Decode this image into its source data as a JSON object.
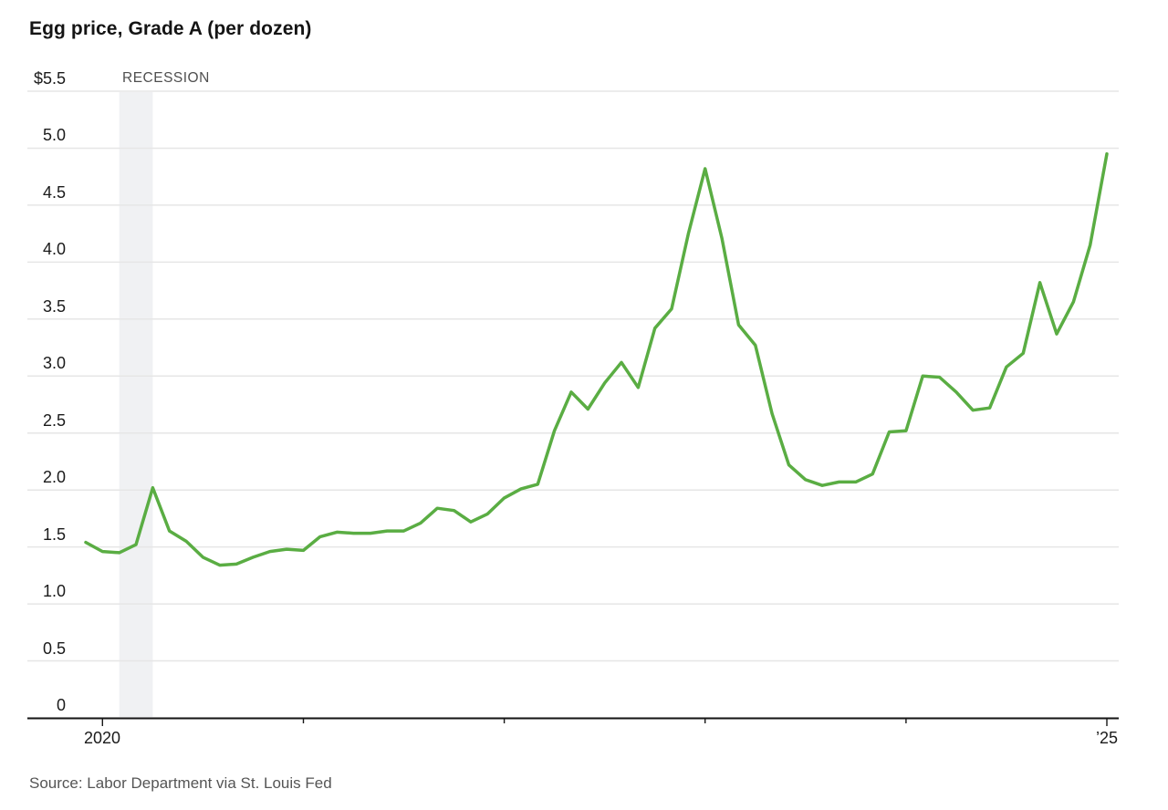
{
  "chart_data": {
    "type": "line",
    "title": "Egg price, Grade A (per dozen)",
    "source_note": "Source: Labor Department via St. Louis Fed",
    "xlabel": "",
    "ylabel": "",
    "ylim": [
      0,
      5.5
    ],
    "grid": "horizontal",
    "legend": "none",
    "recession_band": {
      "label": "RECESSION",
      "start": "2020-02",
      "end": "2020-04"
    },
    "colors": {
      "line": "#5aad43",
      "recession_band": "#f0f1f3",
      "gridline": "#e6e6e6",
      "axis": "#161616",
      "tick_label": "#1a1a1a",
      "muted_text": "#555555"
    },
    "y_ticks": [
      {
        "value": 5.5,
        "label": "$5.5"
      },
      {
        "value": 5.0,
        "label": "5.0"
      },
      {
        "value": 4.5,
        "label": "4.5"
      },
      {
        "value": 4.0,
        "label": "4.0"
      },
      {
        "value": 3.5,
        "label": "3.5"
      },
      {
        "value": 3.0,
        "label": "3.0"
      },
      {
        "value": 2.5,
        "label": "2.5"
      },
      {
        "value": 2.0,
        "label": "2.0"
      },
      {
        "value": 1.5,
        "label": "1.5"
      },
      {
        "value": 1.0,
        "label": "1.0"
      },
      {
        "value": 0.5,
        "label": "0.5"
      },
      {
        "value": 0,
        "label": "0"
      }
    ],
    "x_ticks": [
      {
        "month": "2020-01",
        "label": "2020"
      },
      {
        "month": "2021-01",
        "label": ""
      },
      {
        "month": "2022-01",
        "label": ""
      },
      {
        "month": "2023-01",
        "label": ""
      },
      {
        "month": "2024-01",
        "label": ""
      },
      {
        "month": "2025-01",
        "label": "’25"
      }
    ],
    "series": [
      {
        "name": "Egg price, Grade A (per dozen)",
        "color": "#5aad43",
        "x": [
          "2019-12",
          "2020-01",
          "2020-02",
          "2020-03",
          "2020-04",
          "2020-05",
          "2020-06",
          "2020-07",
          "2020-08",
          "2020-09",
          "2020-10",
          "2020-11",
          "2020-12",
          "2021-01",
          "2021-02",
          "2021-03",
          "2021-04",
          "2021-05",
          "2021-06",
          "2021-07",
          "2021-08",
          "2021-09",
          "2021-10",
          "2021-11",
          "2021-12",
          "2022-01",
          "2022-02",
          "2022-03",
          "2022-04",
          "2022-05",
          "2022-06",
          "2022-07",
          "2022-08",
          "2022-09",
          "2022-10",
          "2022-11",
          "2022-12",
          "2023-01",
          "2023-02",
          "2023-03",
          "2023-04",
          "2023-05",
          "2023-06",
          "2023-07",
          "2023-08",
          "2023-09",
          "2023-10",
          "2023-11",
          "2023-12",
          "2024-01",
          "2024-02",
          "2024-03",
          "2024-04",
          "2024-05",
          "2024-06",
          "2024-07",
          "2024-08",
          "2024-09",
          "2024-10",
          "2024-11",
          "2024-12",
          "2025-01"
        ],
        "values": [
          1.54,
          1.46,
          1.45,
          1.52,
          2.02,
          1.64,
          1.55,
          1.41,
          1.34,
          1.35,
          1.41,
          1.46,
          1.48,
          1.47,
          1.59,
          1.63,
          1.62,
          1.62,
          1.64,
          1.64,
          1.71,
          1.84,
          1.82,
          1.72,
          1.79,
          1.93,
          2.01,
          2.05,
          2.52,
          2.86,
          2.71,
          2.94,
          3.12,
          2.9,
          3.42,
          3.59,
          4.25,
          4.82,
          4.21,
          3.45,
          3.27,
          2.67,
          2.22,
          2.09,
          2.04,
          2.07,
          2.07,
          2.14,
          2.51,
          2.52,
          3.0,
          2.99,
          2.86,
          2.7,
          2.72,
          3.08,
          3.2,
          3.82,
          3.37,
          3.65,
          4.15,
          4.95
        ]
      }
    ]
  }
}
